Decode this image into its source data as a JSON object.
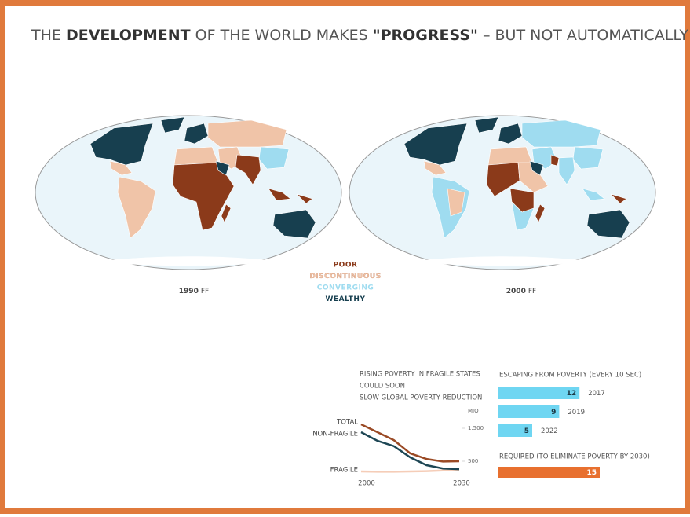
{
  "title": [
    {
      "text": "THE ",
      "bold": false
    },
    {
      "text": "DEVELOPMENT",
      "bold": true
    },
    {
      "text": " OF THE WORLD MAKES ",
      "bold": false
    },
    {
      "text": "\"PROGRESS\"",
      "bold": true
    },
    {
      "text": " – BUT NOT AUTOMATICALLY",
      "bold": false
    }
  ],
  "maps": [
    {
      "year": "1990",
      "note": "FF"
    },
    {
      "year": "2000",
      "note": "FF"
    }
  ],
  "legend": [
    {
      "label": "POOR",
      "color": "#8b3a1a"
    },
    {
      "label": "DISCONTINUOUS",
      "color": "#f0c4a8"
    },
    {
      "label": "CONVERGING",
      "color": "#9fdcf0"
    },
    {
      "label": "WEALTHY",
      "color": "#173f4f"
    }
  ],
  "chart_data": [
    {
      "type": "line",
      "title": [
        "RISING POVERTY IN FRAGILE STATES",
        "COULD SOON",
        "SLOW GLOBAL POVERTY REDUCTION"
      ],
      "unit": "MIO",
      "x": [
        2000,
        2005,
        2010,
        2015,
        2020,
        2025,
        2030
      ],
      "xlim": [
        2000,
        2030
      ],
      "xticks": [
        2000,
        2030
      ],
      "ylim": [
        0,
        1750
      ],
      "yticks": [
        {
          "value": 1500,
          "label": "1.500"
        },
        500
      ],
      "series": [
        {
          "name": "TOTAL",
          "color": "#9a4a25",
          "values": [
            1620,
            1380,
            1140,
            740,
            570,
            490,
            500
          ]
        },
        {
          "name": "NON-FRAGILE",
          "color": "#1d4654",
          "values": [
            1380,
            1120,
            960,
            620,
            380,
            280,
            260
          ]
        },
        {
          "name": "FRAGILE",
          "color": "#f5cdb8",
          "values": [
            190,
            180,
            180,
            190,
            200,
            220,
            240
          ]
        }
      ]
    },
    {
      "type": "bar",
      "title": "ESCAPING FROM POVERTY (EVERY 10 SEC)",
      "categories": [
        "2017",
        "2019",
        "2022"
      ],
      "values": [
        12,
        9,
        5
      ],
      "color": "#6fd6f2",
      "required": {
        "title": "REQUIRED (TO ELIMINATE POVERTY BY 2030)",
        "value": 15,
        "color": "#e8702f"
      }
    }
  ]
}
